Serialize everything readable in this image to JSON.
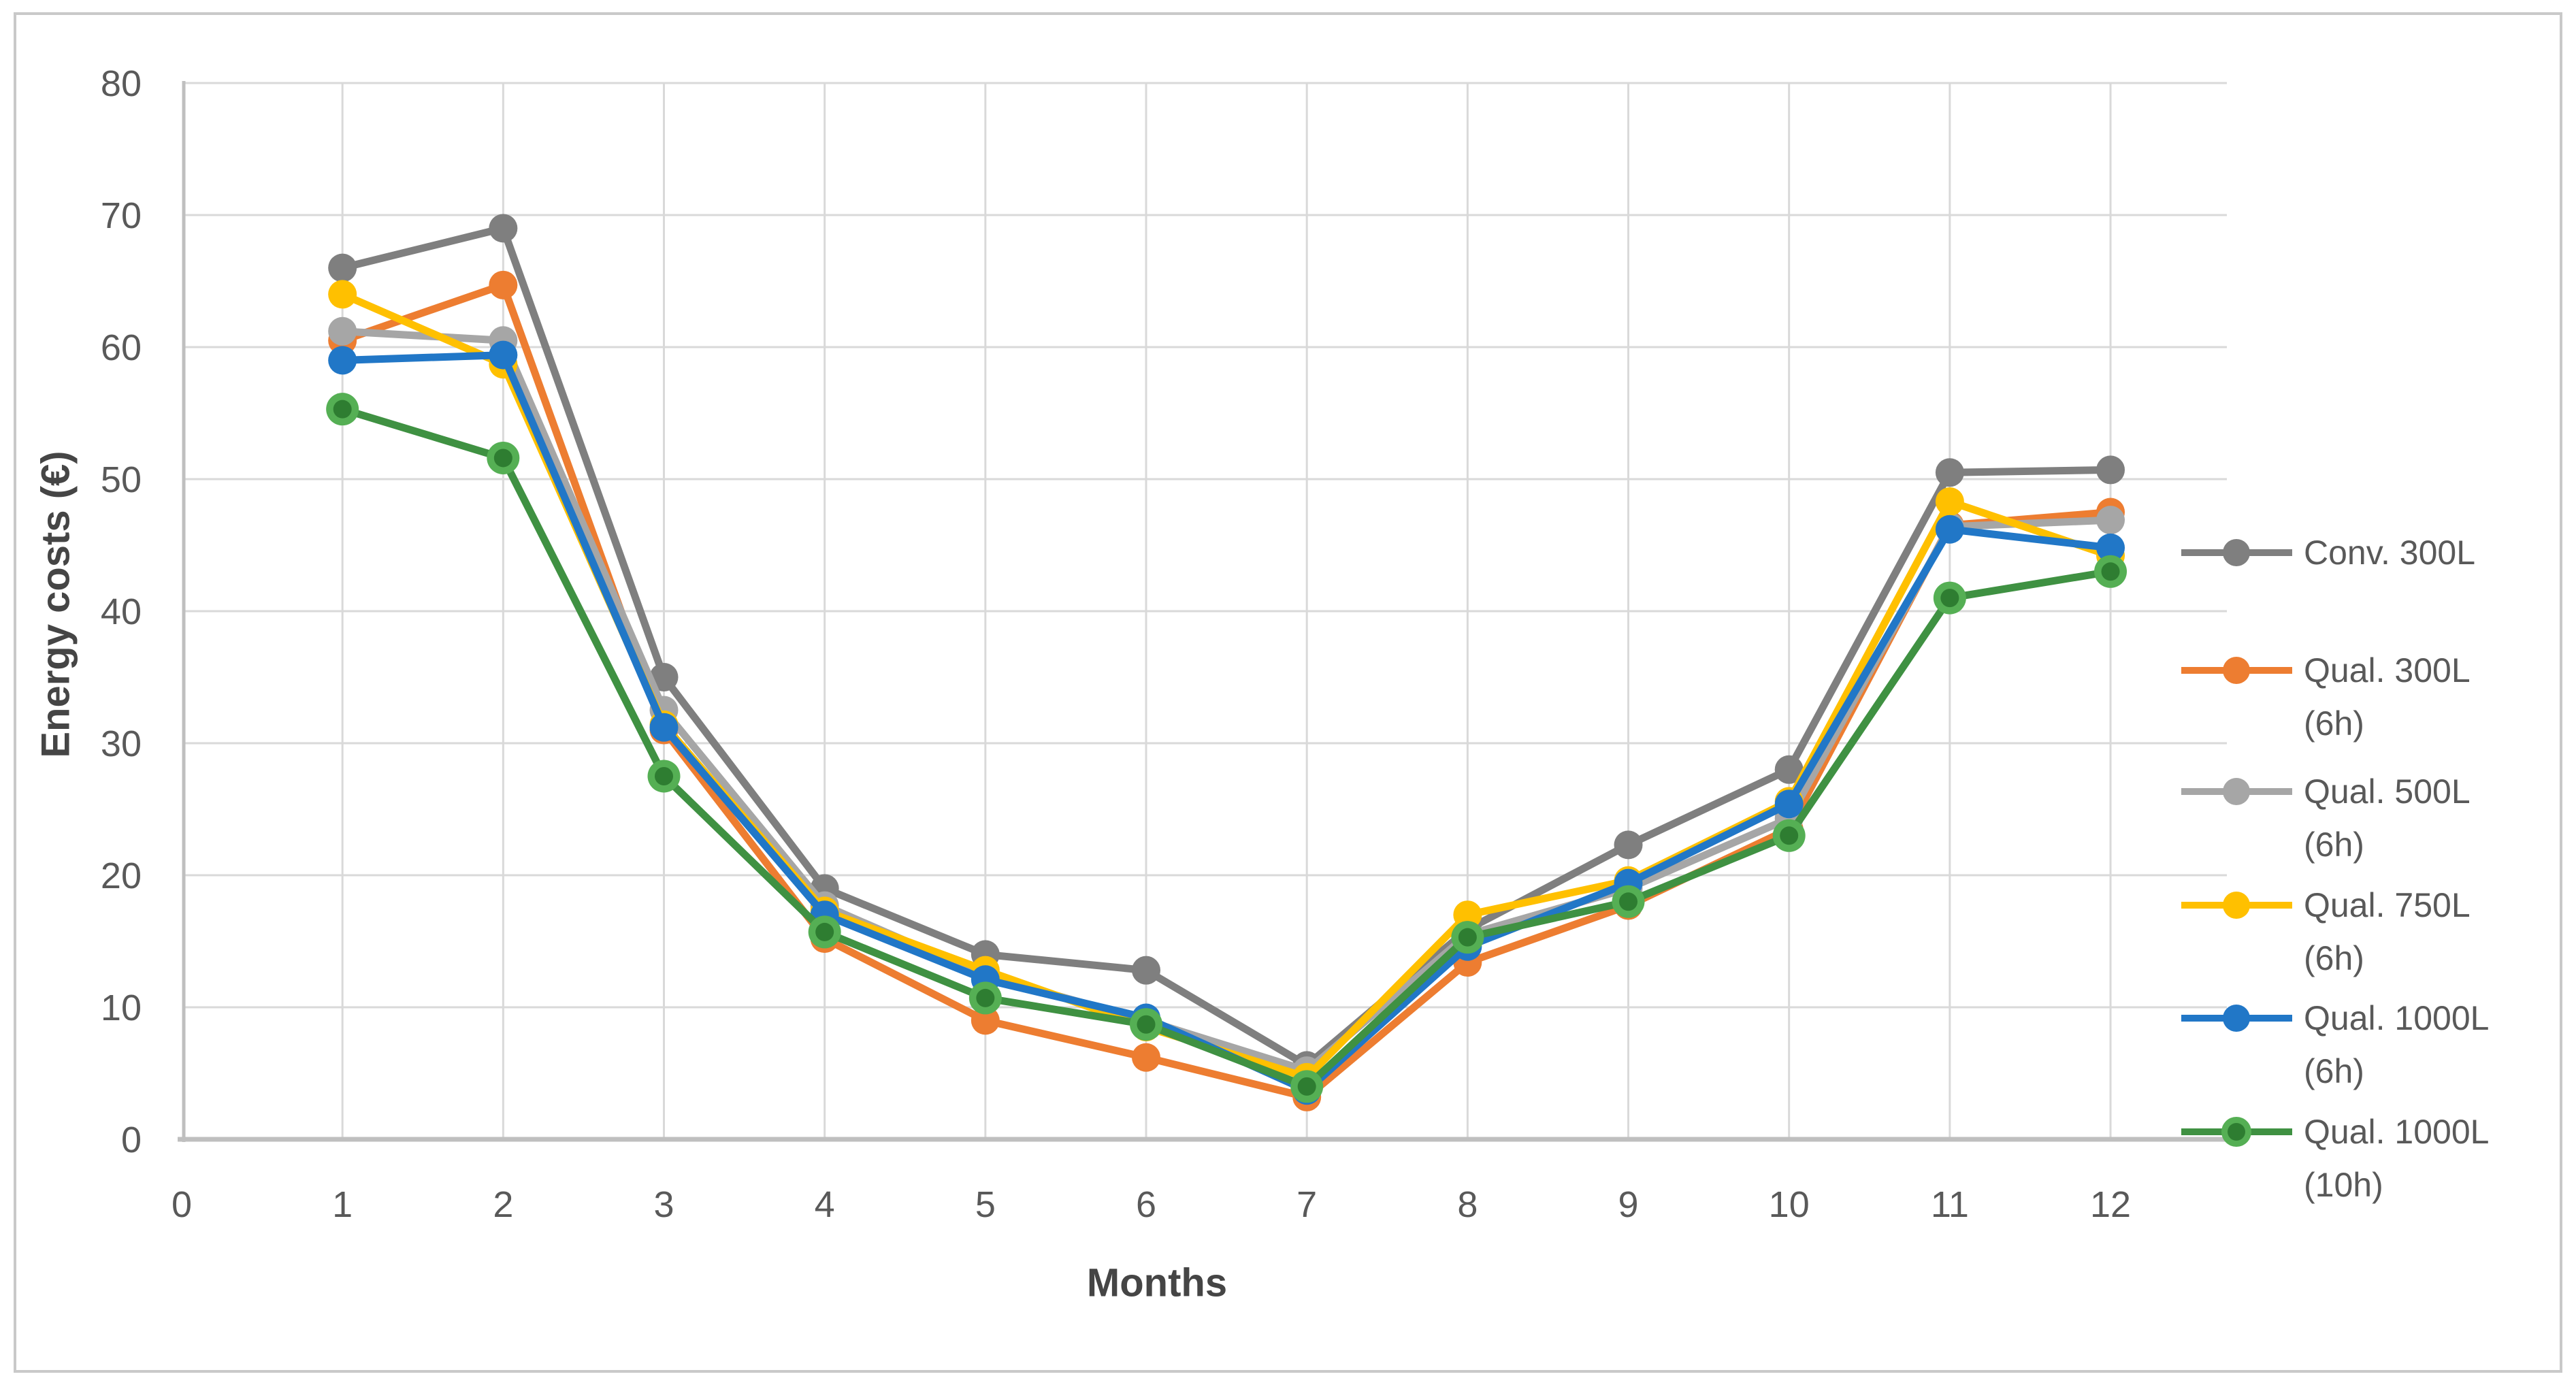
{
  "chart_data": {
    "type": "line",
    "title": "",
    "xlabel": "Months",
    "ylabel": "Energy costs (€)",
    "x": [
      1,
      2,
      3,
      4,
      5,
      6,
      7,
      8,
      9,
      10,
      11,
      12
    ],
    "xlim": [
      0,
      12.75
    ],
    "ylim": [
      0,
      80
    ],
    "x_ticks": [
      0,
      1,
      2,
      3,
      4,
      5,
      6,
      7,
      8,
      9,
      10,
      11,
      12
    ],
    "y_ticks": [
      0,
      10,
      20,
      30,
      40,
      50,
      60,
      70,
      80
    ],
    "grid": true,
    "legend_position": "right",
    "series": [
      {
        "name": "Conv. 300L",
        "legend_lines": [
          "Conv. 300L"
        ],
        "color": "#7F7F7F",
        "values": [
          66,
          69,
          35,
          19,
          14,
          12.8,
          5.6,
          15.9,
          22.3,
          28,
          50.5,
          50.7
        ]
      },
      {
        "name": "Qual. 300L (6h)",
        "legend_lines": [
          "Qual. 300L",
          "(6h)"
        ],
        "color": "#ED7D31",
        "values": [
          60.5,
          64.7,
          31,
          15.2,
          9,
          6.2,
          3.2,
          13.4,
          17.7,
          23.5,
          46.5,
          47.5
        ]
      },
      {
        "name": "Qual. 500L (6h)",
        "legend_lines": [
          "Qual. 500L",
          "(6h)"
        ],
        "color": "#A6A6A6",
        "values": [
          61.2,
          60.5,
          32.5,
          17.7,
          12.4,
          9,
          5.2,
          15.5,
          19,
          24.3,
          46.4,
          46.9
        ]
      },
      {
        "name": "Qual. 750L (6h)",
        "legend_lines": [
          "Qual. 750L",
          "(6h)"
        ],
        "color": "#FFC000",
        "values": [
          64,
          58.7,
          31.4,
          17.3,
          12.8,
          8.5,
          4.7,
          17,
          19.6,
          25.6,
          48.3,
          44.2
        ]
      },
      {
        "name": "Qual. 1000L (6h)",
        "legend_lines": [
          "Qual. 1000L",
          "(6h)"
        ],
        "color": "#2177C7",
        "values": [
          59,
          59.4,
          31.2,
          17,
          12.1,
          9.2,
          3.7,
          14.6,
          19.4,
          25.4,
          46.2,
          44.8
        ]
      },
      {
        "name": "Qual. 1000L (10h)",
        "legend_lines": [
          "Qual. 1000L",
          "(10h)"
        ],
        "color": "#3F9142",
        "marker_outer": "#55AF54",
        "marker_inner": "#2E7D31",
        "values": [
          55.3,
          51.6,
          27.5,
          15.7,
          10.7,
          8.7,
          4,
          15.3,
          18,
          23,
          41,
          43
        ]
      }
    ],
    "colors": {
      "grid": "#D9D9D9",
      "axis": "#BFBFBF",
      "tick_text": "#595959",
      "axis_title_text": "#454545",
      "legend_text": "#595959",
      "figure_border": "#C9C9C9"
    }
  }
}
